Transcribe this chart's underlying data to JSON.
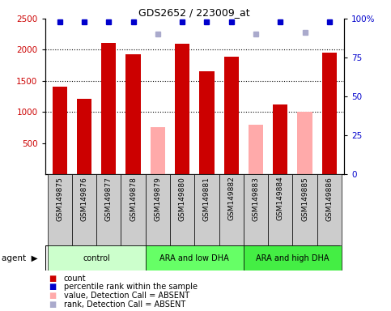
{
  "title": "GDS2652 / 223009_at",
  "samples": [
    "GSM149875",
    "GSM149876",
    "GSM149877",
    "GSM149878",
    "GSM149879",
    "GSM149880",
    "GSM149881",
    "GSM149882",
    "GSM149883",
    "GSM149884",
    "GSM149885",
    "GSM149886"
  ],
  "counts": [
    1410,
    1210,
    2110,
    1930,
    760,
    2095,
    1660,
    1890,
    790,
    1120,
    1000,
    1960
  ],
  "absent": [
    false,
    false,
    false,
    false,
    true,
    false,
    false,
    false,
    true,
    false,
    true,
    false
  ],
  "percentile_ranks": [
    98,
    98,
    98,
    98,
    90,
    98,
    98,
    98,
    90,
    98,
    91,
    98
  ],
  "groups": [
    {
      "label": "control",
      "start": 0,
      "end": 4,
      "color": "#ccffcc"
    },
    {
      "label": "ARA and low DHA",
      "start": 4,
      "end": 8,
      "color": "#66ff66"
    },
    {
      "label": "ARA and high DHA",
      "start": 8,
      "end": 12,
      "color": "#44ee44"
    }
  ],
  "bar_color_present": "#cc0000",
  "bar_color_absent": "#ffaaaa",
  "dot_color_present": "#0000cc",
  "dot_color_absent": "#aaaacc",
  "ylim_left": [
    0,
    2500
  ],
  "ylim_right": [
    0,
    100
  ],
  "yticks_left": [
    500,
    1000,
    1500,
    2000,
    2500
  ],
  "yticks_right": [
    0,
    25,
    50,
    75,
    100
  ],
  "tick_area_color": "#cccccc",
  "agent_label": "agent"
}
